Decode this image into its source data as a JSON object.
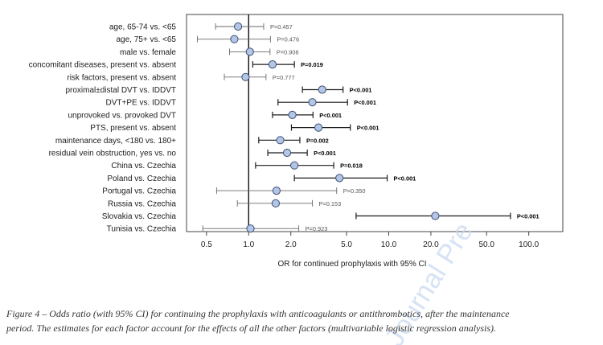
{
  "chart_data": {
    "type": "scatter",
    "subtype": "forest-plot",
    "rows": [
      {
        "label": "age, 65-74 vs. <65",
        "or": 0.84,
        "ci": [
          0.58,
          1.28
        ],
        "p": "P=0.457",
        "significant": false
      },
      {
        "label": "age, 75+ vs. <65",
        "or": 0.79,
        "ci": [
          0.43,
          1.43
        ],
        "p": "P=0.476",
        "significant": false
      },
      {
        "label": "male vs. female",
        "or": 1.02,
        "ci": [
          0.73,
          1.42
        ],
        "p": "P=0.906",
        "significant": false
      },
      {
        "label": "concomitant diseases, present vs. absent",
        "or": 1.48,
        "ci": [
          1.07,
          2.12
        ],
        "p": "P=0.019",
        "significant": true
      },
      {
        "label": "risk factors, present vs. absent",
        "or": 0.95,
        "ci": [
          0.67,
          1.33
        ],
        "p": "P=0.777",
        "significant": false
      },
      {
        "label": "proximal±distal DVT vs. IDDVT",
        "or": 3.35,
        "ci": [
          2.42,
          4.72
        ],
        "p": "P<0.001",
        "significant": true
      },
      {
        "label": "DVT+PE vs. IDDVT",
        "or": 2.85,
        "ci": [
          1.62,
          5.08
        ],
        "p": "P<0.001",
        "significant": true
      },
      {
        "label": "unprovoked vs. provoked DVT",
        "or": 2.05,
        "ci": [
          1.48,
          2.88
        ],
        "p": "P<0.001",
        "significant": true
      },
      {
        "label": "PTS, present vs. absent",
        "or": 3.15,
        "ci": [
          2.02,
          5.32
        ],
        "p": "P<0.001",
        "significant": true
      },
      {
        "label": "maintenance days, <180 vs. 180+",
        "or": 1.68,
        "ci": [
          1.18,
          2.32
        ],
        "p": "P=0.002",
        "significant": true
      },
      {
        "label": "residual vein obstruction, yes vs. no",
        "or": 1.88,
        "ci": [
          1.37,
          2.62
        ],
        "p": "P<0.001",
        "significant": true
      },
      {
        "label": "China vs. Czechia",
        "or": 2.12,
        "ci": [
          1.12,
          4.05
        ],
        "p": "P=0.018",
        "significant": true
      },
      {
        "label": "Poland vs. Czechia",
        "or": 4.45,
        "ci": [
          2.12,
          9.75
        ],
        "p": "P<0.001",
        "significant": true
      },
      {
        "label": "Portugal vs. Czechia",
        "or": 1.58,
        "ci": [
          0.59,
          4.25
        ],
        "p": "P=0.350",
        "significant": false
      },
      {
        "label": "Russia vs. Czechia",
        "or": 1.56,
        "ci": [
          0.83,
          2.85
        ],
        "p": "P=0.153",
        "significant": false
      },
      {
        "label": "Slovakia vs. Czechia",
        "or": 21.5,
        "ci": [
          5.85,
          74.0
        ],
        "p": "P<0.001",
        "significant": true
      },
      {
        "label": "Tunisia vs. Czechia",
        "or": 1.03,
        "ci": [
          0.47,
          2.28
        ],
        "p": "P=0.923",
        "significant": false
      }
    ],
    "xaxis": {
      "scale": "log",
      "ticks": [
        0.5,
        1.0,
        2.0,
        5.0,
        10.0,
        20.0,
        50.0,
        100.0
      ],
      "tick_labels": [
        "0.5",
        "1.0",
        "2.0",
        "5.0",
        "10.0",
        "20.0",
        "50.0",
        "100.0"
      ],
      "reference": 1.0,
      "xlim": [
        0.36,
        175
      ]
    },
    "xlabel": "OR for continued prophylaxis with 95% CI",
    "colors": {
      "marker_fill": "#b4c6e7",
      "marker_stroke": "#3d4f72",
      "ci_significant": "#1c1c1c",
      "ci_nonsignificant": "#6a6a6a",
      "frame": "#444444"
    }
  },
  "caption": {
    "line1": "Figure 4 – Odds ratio (with 95% CI) for continuing the prophylaxis with anticoagulants or antithrombotics, after the maintenance",
    "line2": "period. The estimates for each factor account for the effects of all the other factors (multivariable logistic regression analysis)."
  },
  "watermark": {
    "text": "Journal Pre-proof",
    "color": "#c8d9f0"
  }
}
